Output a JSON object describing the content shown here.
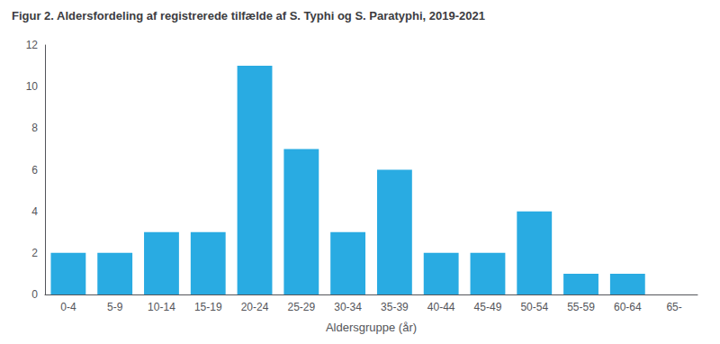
{
  "chart_data": {
    "type": "bar",
    "title": "Figur 2. Aldersfordeling af registrerede tilfælde af S. Typhi og S. Paratyphi, 2019-2021",
    "categories": [
      "0-4",
      "5-9",
      "10-14",
      "15-19",
      "20-24",
      "25-29",
      "30-34",
      "35-39",
      "40-44",
      "45-49",
      "50-54",
      "55-59",
      "60-64",
      "65-"
    ],
    "values": [
      2,
      2,
      3,
      3,
      11,
      7,
      3,
      6,
      2,
      2,
      4,
      1,
      1,
      0
    ],
    "color": "#29ABE2",
    "xlabel": "Aldersgruppe (år)",
    "ylim": [
      0,
      12
    ],
    "yticks": [
      0,
      2,
      4,
      6,
      8,
      10,
      12
    ],
    "grid": false
  }
}
